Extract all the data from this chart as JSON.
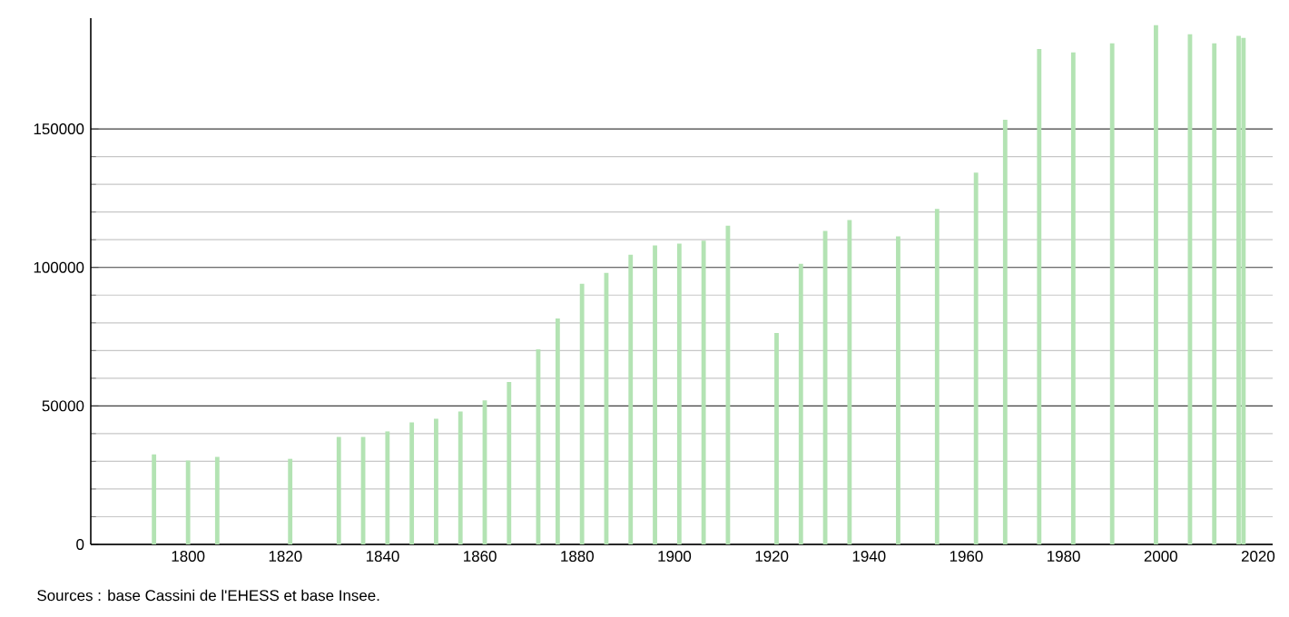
{
  "chart_data": {
    "type": "bar",
    "color": "#b3e3b3",
    "x": [
      1793,
      1800,
      1806,
      1821,
      1831,
      1836,
      1841,
      1846,
      1851,
      1856,
      1861,
      1866,
      1872,
      1876,
      1881,
      1886,
      1891,
      1896,
      1901,
      1906,
      1911,
      1921,
      1926,
      1931,
      1936,
      1946,
      1954,
      1962,
      1968,
      1975,
      1982,
      1990,
      1999,
      2006,
      2011,
      2016,
      2017
    ],
    "values": [
      32500,
      30300,
      31600,
      30900,
      38800,
      38800,
      40800,
      44100,
      45400,
      48000,
      52000,
      58600,
      70400,
      81600,
      94100,
      98000,
      104600,
      107900,
      108600,
      109700,
      115100,
      76300,
      101300,
      113200,
      117100,
      111200,
      121100,
      134200,
      153300,
      178900,
      177600,
      180900,
      187500,
      184200,
      180900,
      183600,
      182900
    ],
    "xlim": [
      1780,
      2023
    ],
    "ylim": [
      0,
      190000
    ],
    "xticks": [
      1800,
      1820,
      1840,
      1860,
      1880,
      1900,
      1920,
      1940,
      1960,
      1980,
      2000,
      2020
    ],
    "yticks": [
      0,
      50000,
      100000,
      150000
    ],
    "grid": "y",
    "annotations": [
      "Sources : base Cassini de l'EHESS et base Insee."
    ]
  }
}
